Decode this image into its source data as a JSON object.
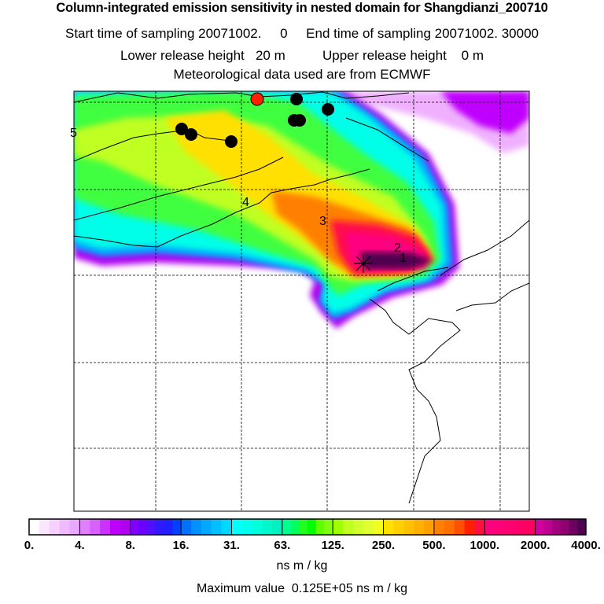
{
  "header": {
    "title": "Column-integrated emission sensitivity in nested domain for Shangdianzi_200710",
    "sampling_line": "Start time of sampling 20071002.     0     End time of sampling 20071002. 30000",
    "release_line": "Lower release height   20 m          Upper release height    0 m",
    "met_line": "Meteorological data used are from ECMWF"
  },
  "map": {
    "age_labels": [
      "5",
      "4",
      "3",
      "2",
      "1"
    ],
    "receptor_marker": "star-cross-icon",
    "dot_colors": {
      "black": "#000000",
      "highlight": "#ff2000"
    }
  },
  "colorbar": {
    "tick_labels": [
      "0.",
      "4.",
      "8.",
      "16.",
      "31.",
      "63.",
      "125.",
      "250.",
      "500.",
      "1000.",
      "2000.",
      "4000."
    ],
    "unit": "ns m / kg",
    "colors": [
      [
        "#ffffff",
        "#fbe6ff",
        "#f6d0ff",
        "#f0baff",
        "#eaa8ff"
      ],
      [
        "#e080ff",
        "#d860ff",
        "#cc30ff",
        "#c000ff",
        "#b000f0"
      ],
      [
        "#8000ff",
        "#6a00ff",
        "#5010ff",
        "#3018ff",
        "#2020ff",
        "#0040ff"
      ],
      [
        "#0070ff",
        "#0090ff",
        "#00a8ff",
        "#00c0ff",
        "#00d8ff"
      ],
      [
        "#00ffff",
        "#00ffee",
        "#00ffdd",
        "#00f8cc",
        "#00f0c0"
      ],
      [
        "#00ff90",
        "#00ff60",
        "#20ff20",
        "#00ff00",
        "#60ff00",
        "#80ff10"
      ],
      [
        "#a0ff00",
        "#c0ff20",
        "#d0ff30",
        "#e0ff30",
        "#f0ff20"
      ],
      [
        "#ffe000",
        "#ffd000",
        "#ffc000",
        "#ffb000",
        "#ffa000"
      ],
      [
        "#ff8000",
        "#ff7000",
        "#ff5000",
        "#ff2000",
        "#ff1040"
      ],
      [
        "#ff0080",
        "#ff0078",
        "#ff0070",
        "#ff0068",
        "#ff0060"
      ],
      [
        "#d000a0",
        "#c00090",
        "#a00080",
        "#900070",
        "#700060",
        "#500050"
      ]
    ]
  },
  "footer": {
    "max_value_line": "Maximum value  0.125E+05 ns m / kg"
  }
}
